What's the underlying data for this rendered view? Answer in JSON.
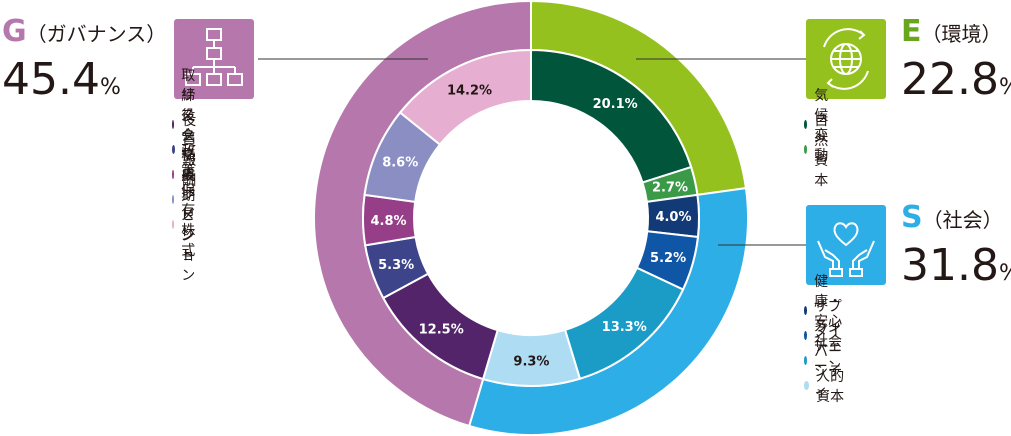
{
  "chart_data": {
    "type": "pie",
    "variant": "nested-donut",
    "outer_ring": [
      {
        "letter": "E",
        "name": "（環境）",
        "value": 22.8,
        "unit": "%",
        "color": "#95c11f"
      },
      {
        "letter": "S",
        "name": "（社会）",
        "value": 31.8,
        "unit": "%",
        "color": "#2eaee6"
      },
      {
        "letter": "G",
        "name": "（ガバナンス）",
        "value": 45.4,
        "unit": "%",
        "color": "#b577ac"
      }
    ],
    "inner_ring": [
      {
        "group": "E",
        "label": "気候変動",
        "value": 20.1,
        "text": "20.1%",
        "color": "#00553a",
        "text_color": "#ffffff"
      },
      {
        "group": "E",
        "label": "自然資本",
        "value": 2.7,
        "text": "2.7%",
        "color": "#3a9a47",
        "text_color": "#ffffff"
      },
      {
        "group": "S",
        "label": "健康・安心社会",
        "value": 4.0,
        "text": "4.0%",
        "color": "#123a77",
        "text_color": "#ffffff"
      },
      {
        "group": "S",
        "label": "サプライチェーン",
        "value": 5.2,
        "text": "5.2%",
        "color": "#0f56a6",
        "text_color": "#ffffff"
      },
      {
        "group": "S",
        "label": "ダイバーシティ",
        "value": 13.3,
        "text": "13.3%",
        "color": "#1a9cc7",
        "text_color": "#ffffff"
      },
      {
        "group": "S",
        "label": "人的資本",
        "value": 9.3,
        "text": "9.3%",
        "color": "#aedcf2",
        "text_color": "#231815"
      },
      {
        "group": "G",
        "label": "取締役会構成",
        "value": 12.5,
        "text": "12.5%",
        "color": "#532469",
        "text_color": "#ffffff"
      },
      {
        "group": "G",
        "label": "役員報酬",
        "value": 5.3,
        "text": "5.3%",
        "color": "#3e4489",
        "text_color": "#ffffff"
      },
      {
        "group": "G",
        "label": "リスクマネジメント",
        "value": 4.8,
        "text": "4.8%",
        "color": "#973e88",
        "text_color": "#ffffff"
      },
      {
        "group": "G",
        "label": "政策保有株式",
        "value": 8.6,
        "text": "8.6%",
        "color": "#8a8ec3",
        "text_color": "#ffffff"
      },
      {
        "group": "G",
        "label": "長期ビジョン",
        "value": 14.2,
        "text": "14.2%",
        "color": "#e6aed0",
        "text_color": "#231815"
      }
    ]
  },
  "panels": {
    "e": {
      "letter": "E",
      "name": "（環境）",
      "pct": "22.8",
      "unit": "%",
      "letter_color": "#6aa51e",
      "icon_bg": "#95c11f",
      "icon": "globe-icon",
      "legend": [
        {
          "label": "気候変動",
          "color": "#00553a"
        },
        {
          "label": "自然資本",
          "color": "#3a9a47"
        }
      ]
    },
    "s": {
      "letter": "S",
      "name": "（社会）",
      "pct": "31.8",
      "unit": "%",
      "letter_color": "#2eaee6",
      "icon_bg": "#2eaee6",
      "icon": "hands-heart-icon",
      "legend": [
        {
          "label": "健康・安心社会",
          "color": "#123a77"
        },
        {
          "label": "サプライチェーン",
          "color": "#0f56a6"
        },
        {
          "label": "ダイバーシティ",
          "color": "#1a9cc7"
        },
        {
          "label": "人的資本",
          "color": "#aedcf2"
        }
      ]
    },
    "g": {
      "letter": "G",
      "name": "（ガバナンス）",
      "pct": "45.4",
      "unit": "%",
      "letter_color": "#b577ac",
      "icon_bg": "#b577ac",
      "icon": "org-chart-icon",
      "legend": [
        {
          "label": "取締役会構成",
          "color": "#532469"
        },
        {
          "label": "役員報酬",
          "color": "#3e4489"
        },
        {
          "label": "リスクマネジメント",
          "color": "#973e88"
        },
        {
          "label": "政策保有株式",
          "color": "#8a8ec3"
        },
        {
          "label": "長期ビジョン",
          "color": "#e6aed0"
        }
      ]
    }
  }
}
